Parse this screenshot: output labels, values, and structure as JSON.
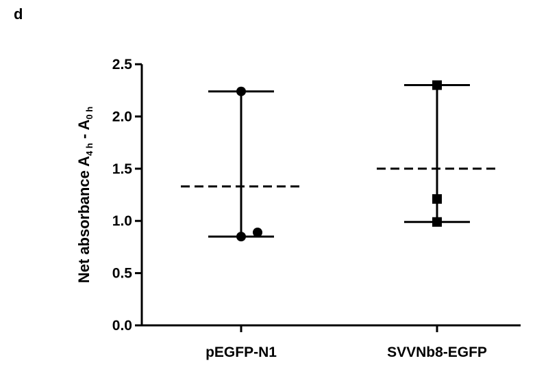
{
  "panel_label": "d",
  "chart_data": {
    "type": "scatter",
    "ylabel": {
      "prefix": "Net absorbance A",
      "sub1": "4 h",
      "mid": " - A",
      "sub2": "0 h"
    },
    "xlabel": "",
    "ylim": [
      0,
      2.5
    ],
    "yticks": [
      "0.0",
      "0.5",
      "1.0",
      "1.5",
      "2.0",
      "2.5"
    ],
    "categories": [
      "pEGFP-N1",
      "SVVNb8-EGFP"
    ],
    "series": [
      {
        "category": "pEGFP-N1",
        "marker": "circle",
        "points": [
          2.24,
          0.85,
          0.89
        ],
        "mean": 1.33,
        "range": [
          0.85,
          2.24
        ]
      },
      {
        "category": "SVVNb8-EGFP",
        "marker": "square",
        "points": [
          2.3,
          1.21,
          0.99
        ],
        "mean": 1.5,
        "range": [
          0.99,
          2.3
        ]
      }
    ],
    "grid": false,
    "color": "#000000"
  }
}
